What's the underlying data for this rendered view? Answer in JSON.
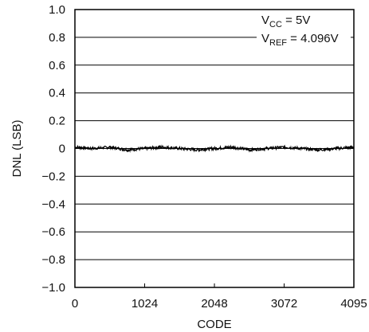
{
  "chart_data": {
    "type": "line",
    "xlabel": "CODE",
    "ylabel": "DNL (LSB)",
    "xlim": [
      0,
      4095
    ],
    "ylim": [
      -1.0,
      1.0
    ],
    "x_ticks": [
      0,
      1024,
      2048,
      3072,
      4095
    ],
    "x_tick_labels": [
      "0",
      "1024",
      "2048",
      "3072",
      "4095"
    ],
    "y_ticks": [
      1.0,
      0.8,
      0.6,
      0.4,
      0.2,
      0,
      -0.2,
      -0.4,
      -0.6,
      -0.8,
      -1.0
    ],
    "y_tick_labels": [
      "1.0",
      "0.8",
      "0.6",
      "0.4",
      "0.2",
      "0",
      "−0.2",
      "−0.4",
      "−0.6",
      "−0.8",
      "−1.0"
    ],
    "grid": "horizontal",
    "annotation": {
      "line1_main": "V",
      "line1_sub": "CC",
      "line1_rest": " = 5V",
      "line2_main": "V",
      "line2_sub": "REF",
      "line2_rest": " = 4.096V"
    },
    "series": [
      {
        "x": [
          0,
          256,
          512,
          768,
          1024,
          1280,
          1536,
          1792,
          2048,
          2304,
          2560,
          2816,
          3072,
          3328,
          3584,
          3840,
          4095
        ],
        "values": [
          0.01,
          0.0,
          0.01,
          -0.01,
          0.0,
          0.01,
          0.0,
          -0.01,
          0.0,
          0.01,
          -0.01,
          0.0,
          0.01,
          0.0,
          -0.01,
          0.0,
          0.01
        ],
        "color": "#000000",
        "noise_band": 0.02
      }
    ]
  }
}
